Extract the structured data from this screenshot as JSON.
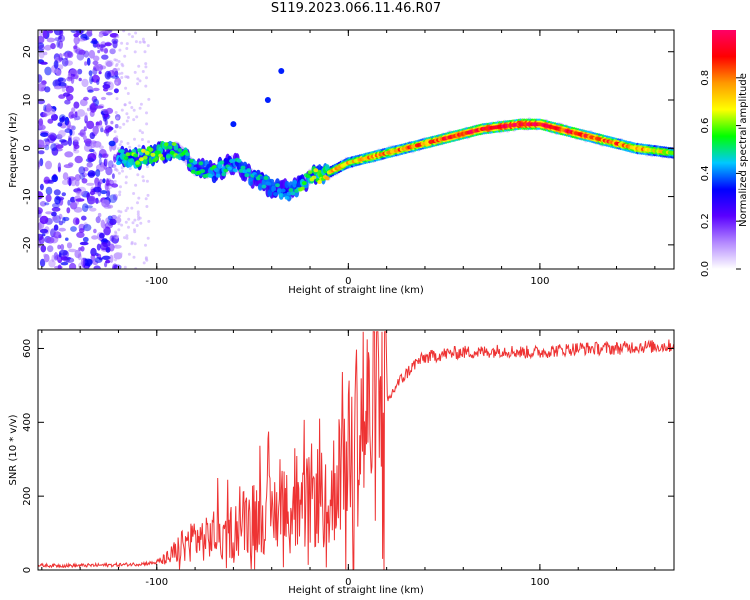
{
  "title": "S119.2023.066.11.46.R07",
  "chart_data": [
    {
      "type": "heatmap",
      "xlabel": "Height of straight line (km)",
      "ylabel": "Frequency (Hz)",
      "xlim": [
        -162,
        170
      ],
      "ylim": [
        -25,
        24.5
      ],
      "x_ticks": [
        -100,
        0,
        100
      ],
      "y_ticks": [
        -20,
        -10,
        0,
        10,
        20
      ],
      "colorbar": {
        "label": "Normalized spectral amplitude",
        "range": [
          0,
          1
        ],
        "ticks": [
          "0.0",
          "0.2",
          "0.4",
          "0.6",
          "0.8"
        ],
        "colors": [
          "#ffffff",
          "#b388ff",
          "#5a00ff",
          "#0000ff",
          "#00c8ff",
          "#00ff00",
          "#ffff00",
          "#ff9900",
          "#ff0000",
          "#ff0066"
        ]
      },
      "ridge": {
        "x": [
          -120,
          -110,
          -100,
          -90,
          -80,
          -70,
          -60,
          -50,
          -40,
          -30,
          -20,
          -10,
          0,
          10,
          20,
          30,
          40,
          50,
          60,
          70,
          80,
          90,
          100,
          110,
          120,
          130,
          140,
          150,
          160,
          170
        ],
        "freq": [
          -2,
          -2,
          -1,
          0,
          -4,
          -5,
          -3,
          -6,
          -8,
          -9,
          -6,
          -5,
          -3,
          -2,
          -1,
          0,
          1,
          2,
          3,
          4,
          4.5,
          5,
          5,
          4,
          3,
          2,
          1,
          0,
          -0.5,
          -1
        ],
        "amplitude": [
          0.5,
          0.6,
          0.6,
          0.55,
          0.5,
          0.5,
          0.45,
          0.45,
          0.45,
          0.45,
          0.6,
          0.7,
          0.7,
          0.75,
          0.75,
          0.8,
          0.8,
          0.85,
          0.9,
          0.9,
          0.95,
          0.95,
          0.95,
          0.9,
          0.9,
          0.85,
          0.8,
          0.75,
          0.7,
          0.65
        ]
      }
    },
    {
      "type": "line",
      "xlabel": "Height of straight line (km)",
      "ylabel": "SNR (10 * v/v)",
      "xlim": [
        -162,
        170
      ],
      "ylim": [
        0,
        650
      ],
      "x_ticks": [
        -100,
        0,
        100
      ],
      "y_ticks": [
        0,
        200,
        400,
        600
      ],
      "color": "#ee3333",
      "x": [
        -162,
        -150,
        -140,
        -130,
        -120,
        -110,
        -100,
        -95,
        -90,
        -85,
        -80,
        -75,
        -70,
        -65,
        -60,
        -55,
        -50,
        -45,
        -40,
        -35,
        -30,
        -25,
        -20,
        -15,
        -10,
        -5,
        0,
        5,
        10,
        15,
        20,
        25,
        30,
        35,
        40,
        50,
        60,
        70,
        80,
        90,
        100,
        110,
        120,
        130,
        140,
        150,
        160,
        170
      ],
      "y": [
        12,
        12,
        12,
        13,
        14,
        16,
        20,
        30,
        50,
        70,
        90,
        80,
        100,
        90,
        110,
        130,
        140,
        150,
        150,
        170,
        150,
        140,
        200,
        200,
        150,
        300,
        340,
        390,
        400,
        420,
        450,
        500,
        530,
        560,
        575,
        585,
        590,
        590,
        595,
        590,
        590,
        595,
        600,
        600,
        600,
        605,
        605,
        608
      ]
    }
  ]
}
